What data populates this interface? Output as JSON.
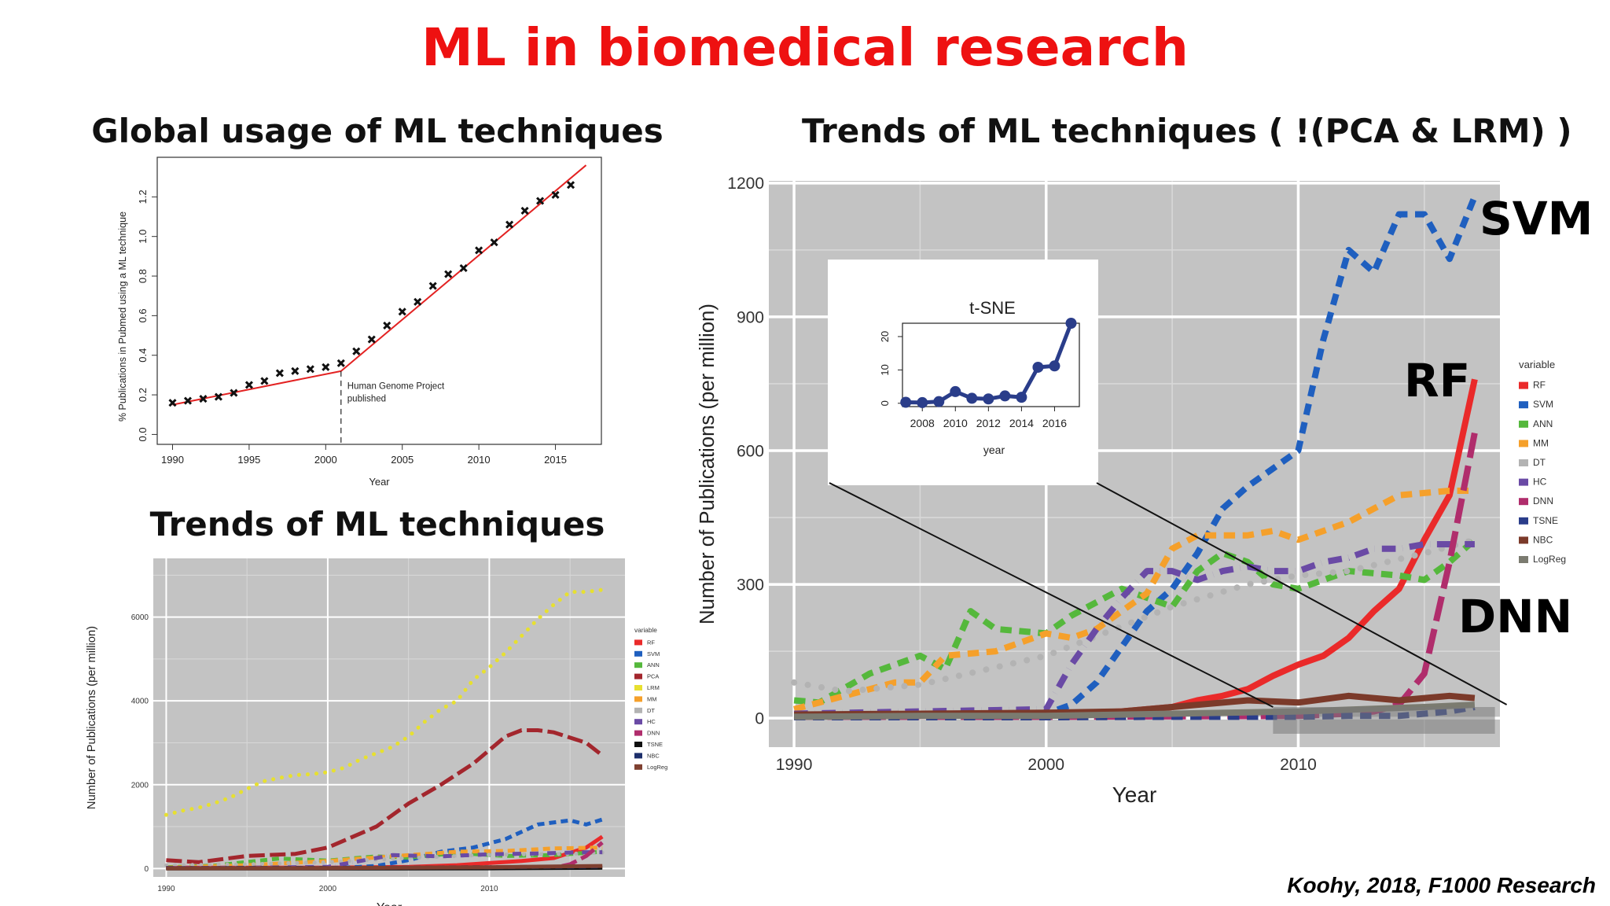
{
  "page": {
    "title": "ML in biomedical research",
    "citation": "Koohy, 2018, F1000 Research"
  },
  "sections": {
    "global": "Global usage of ML techniques",
    "trends": "Trends of ML techniques",
    "right": "Trends of ML techniques ( !(PCA & LRM) )"
  },
  "callouts": {
    "svm": "SVM",
    "rf": "RF",
    "dnn": "DNN"
  },
  "colors": {
    "title": "#ee1111",
    "RF": "#ea2a2a",
    "SVM": "#1f5fbf",
    "ANN": "#55b83c",
    "PCA": "#a3262d",
    "LRM": "#e7e030",
    "MM": "#f5a02b",
    "DT": "#b3b3b3",
    "HC": "#6a4aa5",
    "DNN": "#b02d6c",
    "TSNE": "#101010",
    "TSNE_right": "#2a3d8a",
    "NBC": "#1d2f6b",
    "NBC_right": "#7b3a2a",
    "LogReg": "#7f4030",
    "LogReg_right": "#7b7b70",
    "panel_bg": "#c3c3c3",
    "fit_line": "#e32222"
  },
  "chart_data": [
    {
      "id": "global",
      "type": "scatter",
      "title": "",
      "xlabel": "Year",
      "ylabel": "% Publications in Pubmed using a ML technique",
      "xlim": [
        1989,
        2018
      ],
      "ylim": [
        -0.05,
        1.4
      ],
      "xticks": [
        1990,
        1995,
        2000,
        2005,
        2010,
        2015
      ],
      "yticks": [
        0.0,
        0.2,
        0.4,
        0.6,
        0.8,
        1.0,
        1.2
      ],
      "x": [
        1990,
        1991,
        1992,
        1993,
        1994,
        1995,
        1996,
        1997,
        1998,
        1999,
        2000,
        2001,
        2002,
        2003,
        2004,
        2005,
        2006,
        2007,
        2008,
        2009,
        2010,
        2011,
        2012,
        2013,
        2014,
        2015,
        2016
      ],
      "y": [
        0.16,
        0.17,
        0.18,
        0.19,
        0.21,
        0.25,
        0.27,
        0.31,
        0.32,
        0.33,
        0.34,
        0.36,
        0.42,
        0.48,
        0.55,
        0.62,
        0.67,
        0.75,
        0.81,
        0.84,
        0.93,
        0.97,
        1.06,
        1.13,
        1.18,
        1.21,
        1.26
      ],
      "fit": [
        [
          1990,
          0.15,
          2001,
          0.32
        ],
        [
          2001,
          0.32,
          2017,
          1.36
        ]
      ],
      "annotation": {
        "x": 2001,
        "text": [
          "Human Genome Project",
          "published"
        ]
      }
    },
    {
      "id": "trends-all",
      "type": "line",
      "title": "",
      "xlabel": "Year",
      "ylabel": "Number of Publications (per million)",
      "xlim": [
        1989.2,
        2018.4
      ],
      "ylim": [
        -200,
        7400
      ],
      "xticks": [
        1990,
        2000,
        2010
      ],
      "yticks": [
        0,
        2000,
        4000,
        6000
      ],
      "legend_title": "variable",
      "legend_position": "right",
      "series": [
        {
          "name": "RF",
          "dash": "solid",
          "x": [
            1990,
            1995,
            2000,
            2005,
            2008,
            2010,
            2012,
            2014,
            2016,
            2017
          ],
          "values": [
            20,
            20,
            20,
            40,
            80,
            130,
            180,
            250,
            500,
            760
          ]
        },
        {
          "name": "SVM",
          "dash": "dash",
          "x": [
            1990,
            1995,
            1999,
            2001,
            2003,
            2005,
            2007,
            2009,
            2011,
            2013,
            2015,
            2016,
            2017
          ],
          "values": [
            10,
            10,
            10,
            20,
            60,
            200,
            400,
            500,
            700,
            1050,
            1150,
            1050,
            1170
          ]
        },
        {
          "name": "ANN",
          "dash": "dash",
          "x": [
            1990,
            1993,
            1997,
            2000,
            2003,
            2005,
            2008,
            2011,
            2014,
            2017
          ],
          "values": [
            30,
            70,
            240,
            190,
            290,
            260,
            370,
            300,
            320,
            400
          ]
        },
        {
          "name": "PCA",
          "dash": "longdash",
          "x": [
            1990,
            1992,
            1995,
            1998,
            2000,
            2003,
            2005,
            2007,
            2009,
            2011,
            2012,
            2013,
            2014,
            2016,
            2017
          ],
          "values": [
            200,
            150,
            300,
            350,
            500,
            1000,
            1550,
            2000,
            2500,
            3150,
            3300,
            3300,
            3250,
            3000,
            2700
          ]
        },
        {
          "name": "LRM",
          "dash": "dot",
          "x": [
            1990,
            1991,
            1992,
            1993,
            1994,
            1995,
            1996,
            1997,
            1998,
            1999,
            2000,
            2001,
            2002,
            2003,
            2004,
            2005,
            2006,
            2007,
            2008,
            2009,
            2010,
            2011,
            2012,
            2013,
            2014,
            2015,
            2016,
            2017
          ],
          "values": [
            1280,
            1380,
            1450,
            1560,
            1700,
            1900,
            2080,
            2160,
            2230,
            2250,
            2300,
            2400,
            2600,
            2750,
            2900,
            3150,
            3500,
            3800,
            4000,
            4500,
            4800,
            5150,
            5550,
            5950,
            6300,
            6600,
            6600,
            6650
          ]
        },
        {
          "name": "MM",
          "dash": "dash",
          "x": [
            1990,
            1995,
            2000,
            2005,
            2008,
            2011,
            2014,
            2017
          ],
          "values": [
            20,
            80,
            180,
            320,
            400,
            420,
            480,
            500
          ]
        },
        {
          "name": "DT",
          "dash": "dot",
          "x": [
            1990,
            1995,
            2000,
            2005,
            2010,
            2015,
            2017
          ],
          "values": [
            80,
            100,
            150,
            250,
            330,
            350,
            380
          ]
        },
        {
          "name": "HC",
          "dash": "dashdot",
          "x": [
            1990,
            1995,
            2000,
            2004,
            2007,
            2010,
            2013,
            2016,
            2017
          ],
          "values": [
            10,
            20,
            40,
            320,
            290,
            340,
            360,
            390,
            390
          ]
        },
        {
          "name": "DNN",
          "dash": "longdash",
          "x": [
            1990,
            2000,
            2010,
            2014,
            2015,
            2016,
            2017
          ],
          "values": [
            10,
            10,
            10,
            20,
            100,
            300,
            620
          ]
        },
        {
          "name": "TSNE",
          "dash": "solid",
          "x": [
            1990,
            2000,
            2010,
            2017
          ],
          "values": [
            0,
            0,
            5,
            20
          ]
        },
        {
          "name": "NBC",
          "dash": "dash",
          "x": [
            1990,
            2000,
            2010,
            2017
          ],
          "values": [
            10,
            15,
            30,
            50
          ]
        },
        {
          "name": "LogReg",
          "dash": "solid",
          "x": [
            1990,
            2000,
            2010,
            2017
          ],
          "values": [
            5,
            10,
            30,
            60
          ]
        }
      ]
    },
    {
      "id": "trends-filtered",
      "type": "line",
      "title": "",
      "xlabel": "Year",
      "ylabel": "Number of Publications (per million)",
      "xlim": [
        1989,
        2018
      ],
      "ylim": [
        -65,
        1205
      ],
      "xticks": [
        1990,
        2000,
        2010
      ],
      "yticks": [
        0,
        300,
        600,
        900,
        1200
      ],
      "legend_title": "variable",
      "legend_position": "right",
      "series": [
        {
          "name": "RF",
          "dash": "solid",
          "x": [
            1990,
            1995,
            2000,
            2003,
            2005,
            2006,
            2007,
            2008,
            2009,
            2010,
            2011,
            2012,
            2013,
            2014,
            2015,
            2016,
            2017
          ],
          "values": [
            5,
            5,
            8,
            15,
            25,
            40,
            50,
            65,
            95,
            120,
            140,
            180,
            240,
            290,
            400,
            500,
            760
          ]
        },
        {
          "name": "SVM",
          "dash": "dash",
          "x": [
            1990,
            1995,
            1998,
            2000,
            2001,
            2002,
            2003,
            2004,
            2005,
            2006,
            2007,
            2008,
            2009,
            2010,
            2011,
            2012,
            2013,
            2014,
            2015,
            2016,
            2017
          ],
          "values": [
            3,
            5,
            8,
            10,
            30,
            80,
            160,
            240,
            290,
            370,
            470,
            520,
            560,
            600,
            850,
            1050,
            1000,
            1130,
            1130,
            1030,
            1170
          ]
        },
        {
          "name": "ANN",
          "dash": "dash",
          "x": [
            1990,
            1991,
            1993,
            1995,
            1996,
            1997,
            1998,
            2000,
            2001,
            2003,
            2005,
            2006,
            2007,
            2008,
            2009,
            2010,
            2012,
            2014,
            2015,
            2016,
            2017
          ],
          "values": [
            40,
            35,
            100,
            140,
            110,
            240,
            200,
            190,
            230,
            290,
            250,
            330,
            370,
            350,
            300,
            290,
            330,
            320,
            310,
            350,
            400
          ]
        },
        {
          "name": "MM",
          "dash": "dash",
          "x": [
            1990,
            1992,
            1994,
            1995,
            1996,
            1998,
            2000,
            2001,
            2002,
            2004,
            2005,
            2006,
            2008,
            2009,
            2010,
            2012,
            2014,
            2016,
            2017
          ],
          "values": [
            20,
            50,
            80,
            80,
            140,
            150,
            190,
            180,
            200,
            280,
            380,
            410,
            410,
            420,
            400,
            440,
            500,
            510,
            510
          ]
        },
        {
          "name": "DT",
          "dash": "dot",
          "x": [
            1990,
            1992,
            1995,
            2000,
            2005,
            2008,
            2010,
            2012,
            2015,
            2017
          ],
          "values": [
            80,
            60,
            75,
            140,
            250,
            300,
            320,
            330,
            370,
            400
          ]
        },
        {
          "name": "HC",
          "dash": "dashdot",
          "x": [
            1990,
            1995,
            2000,
            2001,
            2002,
            2003,
            2004,
            2005,
            2006,
            2007,
            2008,
            2009,
            2010,
            2011,
            2012,
            2013,
            2014,
            2015,
            2016,
            2017
          ],
          "values": [
            10,
            15,
            20,
            120,
            200,
            270,
            330,
            330,
            310,
            330,
            340,
            330,
            330,
            350,
            360,
            380,
            380,
            390,
            390,
            390
          ]
        },
        {
          "name": "DNN",
          "dash": "longdash",
          "x": [
            1990,
            2000,
            2010,
            2012,
            2013,
            2014,
            2015,
            2016,
            2017
          ],
          "values": [
            3,
            3,
            5,
            10,
            15,
            30,
            100,
            350,
            640
          ]
        },
        {
          "name": "TSNE",
          "dash": "dash",
          "x": [
            1990,
            2000,
            2005,
            2010,
            2012,
            2014,
            2015,
            2016,
            2017
          ],
          "values": [
            2,
            2,
            3,
            3,
            5,
            5,
            10,
            15,
            25
          ]
        },
        {
          "name": "NBC",
          "dash": "solid",
          "x": [
            1990,
            1995,
            2000,
            2003,
            2005,
            2008,
            2010,
            2012,
            2014,
            2016,
            2017
          ],
          "values": [
            8,
            10,
            12,
            15,
            25,
            40,
            35,
            50,
            40,
            50,
            45
          ]
        },
        {
          "name": "LogReg",
          "dash": "solid",
          "x": [
            1990,
            1995,
            2000,
            2005,
            2010,
            2015,
            2017
          ],
          "values": [
            3,
            5,
            5,
            10,
            15,
            25,
            30
          ]
        }
      ],
      "highlight": {
        "x": [
          2009,
          2017.8
        ],
        "y": [
          -35,
          25
        ]
      },
      "inset": {
        "type": "line",
        "title": "t-SNE",
        "xlabel": "year",
        "ylabel": "",
        "xlim": [
          2006.8,
          2017.5
        ],
        "ylim": [
          -1,
          24
        ],
        "xticks": [
          2008,
          2010,
          2012,
          2014,
          2016
        ],
        "yticks": [
          0,
          10,
          20
        ],
        "x": [
          2007,
          2008,
          2009,
          2010,
          2011,
          2012,
          2013,
          2014,
          2015,
          2016,
          2017
        ],
        "values": [
          0.3,
          0.2,
          0.5,
          3.5,
          1.5,
          1.3,
          2.2,
          1.8,
          10.8,
          11.2,
          24
        ]
      }
    }
  ]
}
